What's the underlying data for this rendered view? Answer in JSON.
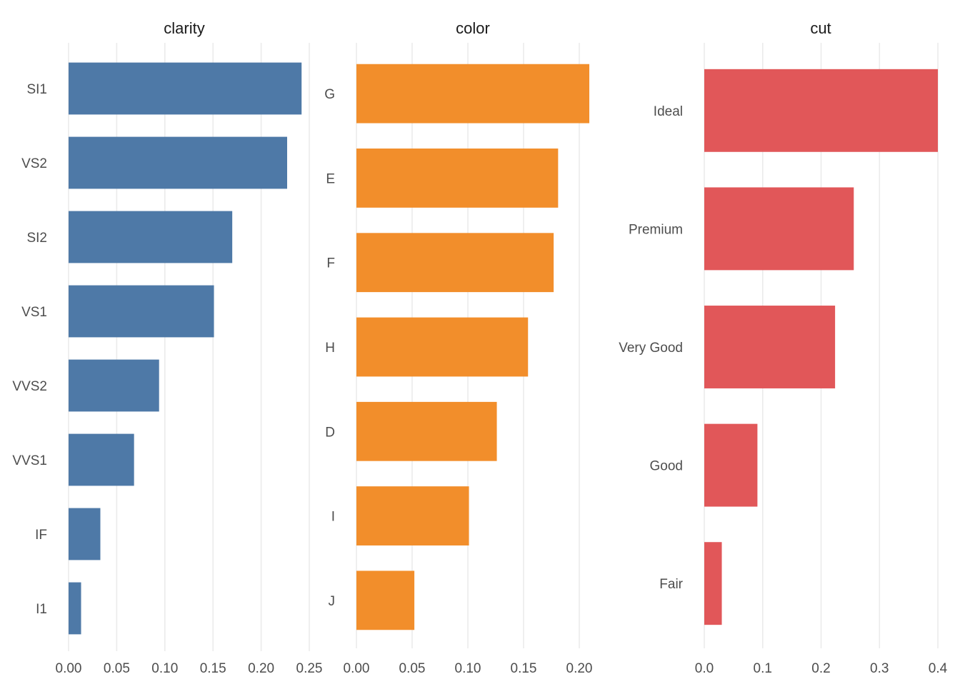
{
  "chart_data": [
    {
      "type": "bar",
      "orientation": "horizontal",
      "title": "clarity",
      "color": "#4e79a7",
      "categories": [
        "SI1",
        "VS2",
        "SI2",
        "VS1",
        "VVS2",
        "VVS1",
        "IF",
        "I1"
      ],
      "values": [
        0.242,
        0.227,
        0.17,
        0.151,
        0.094,
        0.068,
        0.033,
        0.013
      ],
      "xlim": [
        0,
        0.25
      ],
      "xticks": [
        0,
        0.05,
        0.1,
        0.15,
        0.2,
        0.25
      ],
      "xtick_labels": [
        "0.00",
        "0.05",
        "0.10",
        "0.15",
        "0.20",
        "0.25"
      ],
      "xlabel": "",
      "ylabel": "",
      "grid": "vertical"
    },
    {
      "type": "bar",
      "orientation": "horizontal",
      "title": "color",
      "color": "#f28e2b",
      "categories": [
        "G",
        "E",
        "F",
        "H",
        "D",
        "I",
        "J"
      ],
      "values": [
        0.209,
        0.181,
        0.177,
        0.154,
        0.126,
        0.101,
        0.052
      ],
      "xlim": [
        0,
        0.2
      ],
      "xticks": [
        0,
        0.05,
        0.1,
        0.15,
        0.2
      ],
      "xtick_labels": [
        "0.00",
        "0.05",
        "0.10",
        "0.15",
        "0.20"
      ],
      "xlabel": "",
      "ylabel": "",
      "grid": "vertical"
    },
    {
      "type": "bar",
      "orientation": "horizontal",
      "title": "cut",
      "color": "#e15759",
      "categories": [
        "Ideal",
        "Premium",
        "Very Good",
        "Good",
        "Fair"
      ],
      "values": [
        0.4,
        0.256,
        0.224,
        0.091,
        0.03
      ],
      "xlim": [
        0,
        0.4
      ],
      "xticks": [
        0,
        0.1,
        0.2,
        0.3,
        0.4
      ],
      "xtick_labels": [
        "0.0",
        "0.1",
        "0.2",
        "0.3",
        "0.4"
      ],
      "xlabel": "",
      "ylabel": "",
      "grid": "vertical"
    }
  ]
}
